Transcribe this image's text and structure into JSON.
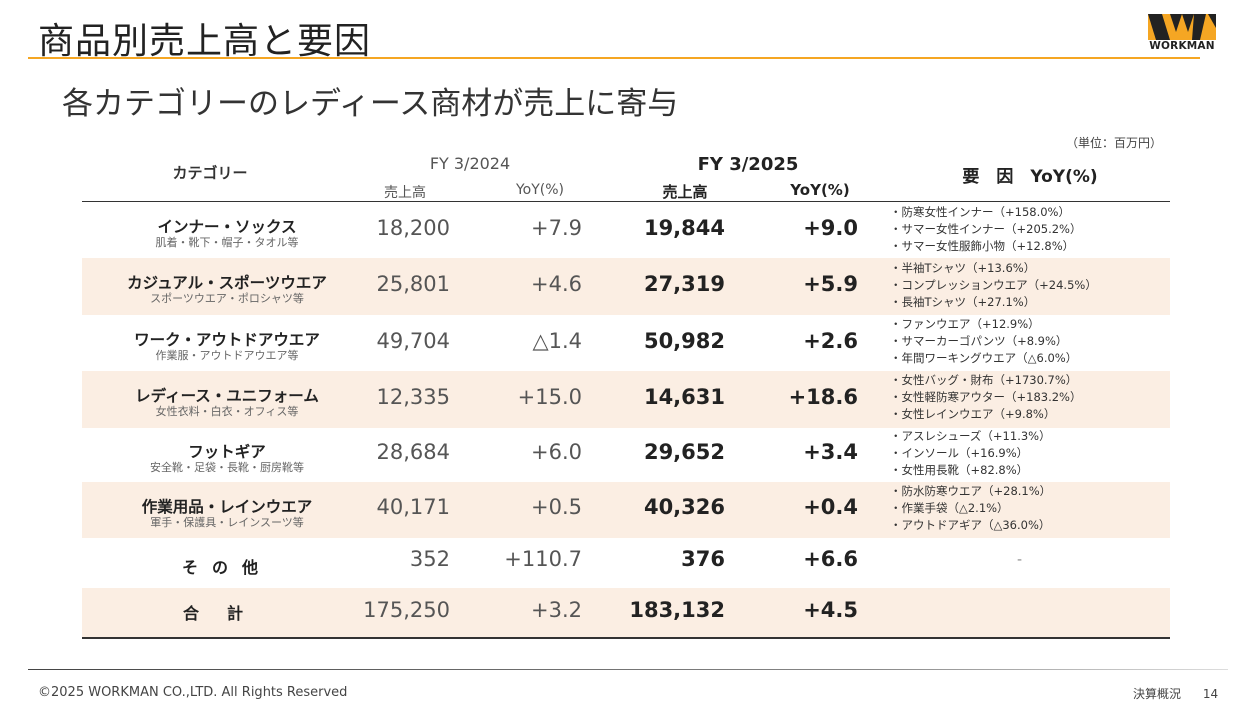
{
  "page": {
    "title": "商品別売上高と要因",
    "subtitle": "各カテゴリーのレディース商材が売上に寄与",
    "unit": "（単位：百万円）",
    "logo_text": "WORKMAN",
    "accent_color": "#f5a623",
    "row_shade_color": "#fbeee3"
  },
  "table": {
    "headers": {
      "category": "カテゴリー",
      "fy2024": "FY 3/2024",
      "fy2025": "FY 3/2025",
      "sales": "売上高",
      "yoy": "YoY(%)",
      "factor": "要　因　YoY(%)"
    },
    "rows": [
      {
        "name": "インナー・ソックス",
        "sub": "肌着・靴下・帽子・タオル等",
        "sales_2024": "18,200",
        "yoy_2024": "+7.9",
        "sales_2025": "19,844",
        "yoy_2025": "+9.0",
        "factors": [
          "・防寒女性インナー（+158.0%）",
          "・サマー女性インナー（+205.2%）",
          "・サマー女性服飾小物（+12.8%）"
        ]
      },
      {
        "name": "カジュアル・スポーツウエア",
        "sub": "スポーツウエア・ポロシャツ等",
        "sales_2024": "25,801",
        "yoy_2024": "+4.6",
        "sales_2025": "27,319",
        "yoy_2025": "+5.9",
        "factors": [
          "・半袖Tシャツ（+13.6%）",
          "・コンプレッションウエア（+24.5%）",
          "・長袖Tシャツ（+27.1%）"
        ]
      },
      {
        "name": "ワーク・アウトドアウエア",
        "sub": "作業服・アウトドアウエア等",
        "sales_2024": "49,704",
        "yoy_2024": "△1.4",
        "sales_2025": "50,982",
        "yoy_2025": "+2.6",
        "factors": [
          "・ファンウエア（+12.9%）",
          "・サマーカーゴパンツ（+8.9%）",
          "・年間ワーキングウエア（△6.0%）"
        ]
      },
      {
        "name": "レディース・ユニフォーム",
        "sub": "女性衣料・白衣・オフィス等",
        "sales_2024": "12,335",
        "yoy_2024": "+15.0",
        "sales_2025": "14,631",
        "yoy_2025": "+18.6",
        "factors": [
          "・女性バッグ・財布（+1730.7%）",
          "・女性軽防寒アウター（+183.2%）",
          "・女性レインウエア（+9.8%）"
        ]
      },
      {
        "name": "フットギア",
        "sub": "安全靴・足袋・長靴・厨房靴等",
        "sales_2024": "28,684",
        "yoy_2024": "+6.0",
        "sales_2025": "29,652",
        "yoy_2025": "+3.4",
        "factors": [
          "・アスレシューズ（+11.3%）",
          "・インソール（+16.9%）",
          "・女性用長靴（+82.8%）"
        ]
      },
      {
        "name": "作業用品・レインウエア",
        "sub": "軍手・保護具・レインスーツ等",
        "sales_2024": "40,171",
        "yoy_2024": "+0.5",
        "sales_2025": "40,326",
        "yoy_2025": "+0.4",
        "factors": [
          "・防水防寒ウエア（+28.1%）",
          "・作業手袋（△2.1%）",
          "・アウトドアギア（△36.0%）"
        ]
      }
    ],
    "other": {
      "name": "その他",
      "sales_2024": "352",
      "yoy_2024": "+110.7",
      "sales_2025": "376",
      "yoy_2025": "+6.6",
      "factor": "-"
    },
    "total": {
      "name": "合計",
      "sales_2024": "175,250",
      "yoy_2024": "+3.2",
      "sales_2025": "183,132",
      "yoy_2025": "+4.5"
    }
  },
  "footer": {
    "copyright": "©2025 WORKMAN CO.,LTD. All Rights Reserved",
    "section": "決算概況",
    "page_number": "14"
  }
}
